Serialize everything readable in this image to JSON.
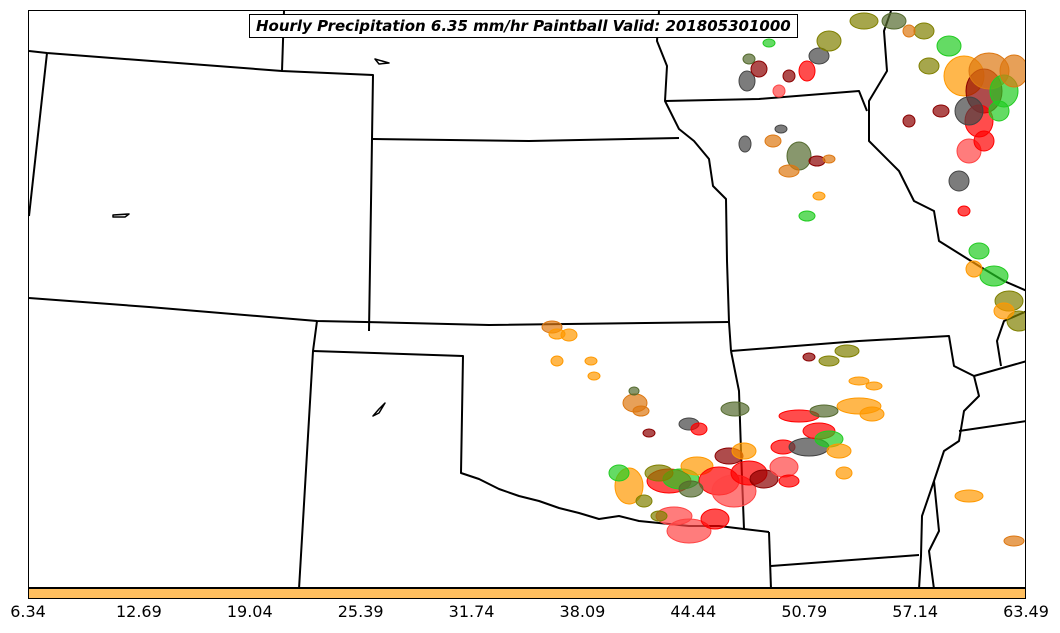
{
  "title": "Hourly Precipitation 6.35 mm/hr Paintball Valid: 201805301000",
  "colorbar": {
    "color": "#ffbf5f",
    "ticks": [
      "6.34",
      "12.69",
      "19.04",
      "25.39",
      "31.74",
      "38.09",
      "44.44",
      "50.79",
      "57.14",
      "63.49"
    ]
  },
  "ensemble_colors": [
    "#ff0000",
    "#22cc22",
    "#ff9900",
    "#8b0000",
    "#556b2f",
    "#808000",
    "#444444",
    "#ff4444",
    "#dd7711"
  ],
  "map": {
    "background": "#ffffff",
    "boundary_color": "#000000"
  }
}
